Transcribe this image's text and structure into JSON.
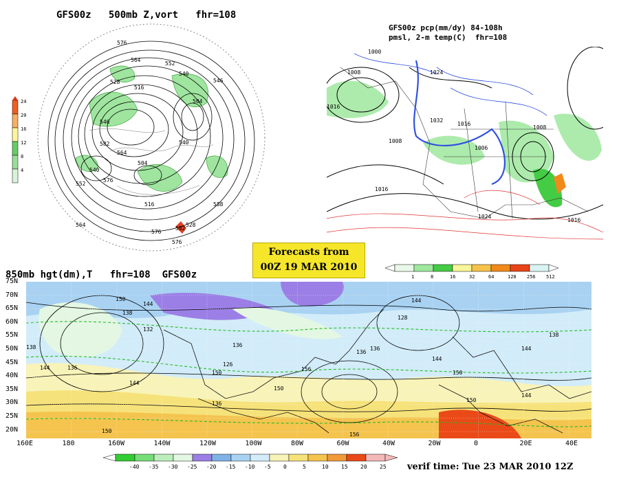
{
  "panel_500mb": {
    "title": "GFS00z   500mb Z,vort   fhr=108",
    "legend_levels": [
      "24",
      "20",
      "16",
      "12",
      "8",
      "4"
    ],
    "legend_colors": [
      "#f06020",
      "#f6b060",
      "#fff59a",
      "#66cc66",
      "#99dd99",
      "#d9f3d9"
    ],
    "contour_labels": [
      "576",
      "564",
      "552",
      "540",
      "528",
      "516",
      "504",
      "546",
      "582",
      "564",
      "540",
      "576",
      "588",
      "576",
      "582",
      "528",
      "516",
      "504",
      "540",
      "552",
      "564",
      "576",
      "546"
    ]
  },
  "panel_pcp": {
    "title_line1": "GFS00z pcp(mm/dy) 84-108h",
    "title_line2": "pmsl, 2-m temp(C)  fhr=108",
    "legend_levels": [
      "1",
      "8",
      "16",
      "32",
      "64",
      "128",
      "256",
      "512"
    ],
    "legend_colors": [
      "#e9f9e9",
      "#9fe89f",
      "#44cc44",
      "#f8f59a",
      "#f6c24a",
      "#f08a1a",
      "#e8441a",
      "#d9f3f3"
    ],
    "isobar_labels": [
      "1000",
      "1008",
      "1016",
      "1024",
      "1032",
      "1016",
      "1008",
      "1006",
      "1016",
      "1008",
      "1024",
      "1016"
    ]
  },
  "banner": {
    "line1": "Forecasts from",
    "line2": "00Z 19 MAR 2010"
  },
  "panel_850": {
    "title": "850mb hgt(dm),T   fhr=108  GFS00z",
    "lat_labels": [
      "75N",
      "70N",
      "65N",
      "60N",
      "55N",
      "50N",
      "45N",
      "40N",
      "35N",
      "30N",
      "25N",
      "20N"
    ],
    "lon_labels": [
      "160E",
      "180",
      "160W",
      "140W",
      "120W",
      "100W",
      "80W",
      "60W",
      "40W",
      "20W",
      "0",
      "20E",
      "40E"
    ],
    "contour_labels": [
      "150",
      "144",
      "138",
      "132",
      "138",
      "144",
      "136",
      "136",
      "128",
      "136",
      "144",
      "150",
      "150",
      "144",
      "136",
      "126",
      "156",
      "150",
      "150",
      "156",
      "144",
      "136",
      "144",
      "138",
      "150",
      "144"
    ],
    "temp_levels": [
      "-40",
      "-35",
      "-30",
      "-25",
      "-20",
      "-15",
      "-10",
      "-5",
      "0",
      "5",
      "10",
      "15",
      "20",
      "25"
    ],
    "temp_colors": [
      "#33cc33",
      "#77dd77",
      "#bbeebb",
      "#e3f7e3",
      "#9b7fe6",
      "#7fb2e6",
      "#a9d2f2",
      "#d2ecf9",
      "#f8f3b8",
      "#f6e27a",
      "#f4c44f",
      "#f09a3a",
      "#ea4a18",
      "#f3b8b8"
    ]
  },
  "verif_time": "verif time: Tue 23 MAR 2010 12Z"
}
